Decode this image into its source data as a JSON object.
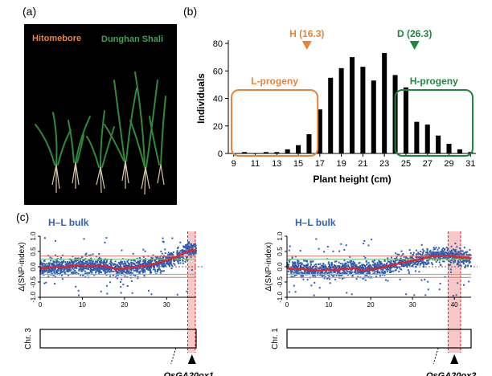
{
  "panel_labels": {
    "a": "(a)",
    "b": "(b)",
    "c": "(c)"
  },
  "photo": {
    "left_label": "Hitomebore",
    "right_label": "Dunghan Shali",
    "left_color": "#e8843a",
    "right_color": "#3fa34d"
  },
  "chart_data": [
    {
      "type": "bar",
      "categories": [
        9,
        10,
        11,
        12,
        13,
        14,
        15,
        16,
        17,
        18,
        19,
        20,
        21,
        22,
        23,
        24,
        25,
        26,
        27,
        28,
        29,
        30,
        31
      ],
      "values": [
        0,
        1,
        0,
        1,
        1,
        3,
        6,
        14,
        32,
        55,
        62,
        70,
        63,
        53,
        73,
        57,
        48,
        23,
        21,
        13,
        7,
        3,
        1
      ],
      "xlabel": "Plant height (cm)",
      "ylabel": "Individuals",
      "ylim": [
        0,
        80
      ],
      "xlim": [
        9,
        32
      ],
      "xticks": [
        "9",
        "11",
        "13",
        "15",
        "17",
        "19",
        "21",
        "23",
        "25",
        "27",
        "29",
        "31"
      ],
      "yticks": [
        "0",
        "20",
        "40",
        "60",
        "80"
      ],
      "annotations": [
        {
          "text": "H (16.3)",
          "x": 16.3,
          "color": "#e8843a"
        },
        {
          "text": "D (26.3)",
          "x": 26.3,
          "color": "#1a8a3a"
        },
        {
          "text": "L-progeny",
          "color": "#e8843a",
          "x_range": [
            9.3,
            17.3
          ]
        },
        {
          "text": "H-progeny",
          "color": "#1a8a3a",
          "x_range": [
            24.5,
            31.7
          ]
        }
      ]
    },
    {
      "type": "scatter",
      "title": "H–L bulk",
      "ylabel": "Δ(SNP-index)",
      "ylim": [
        -1.0,
        1.0
      ],
      "yticks": [
        "1.0",
        "0.5",
        "0.0",
        "-0.5",
        "-1.0"
      ],
      "xlim": [
        0,
        37
      ],
      "xticks": [
        "0",
        "10",
        "20",
        "30"
      ],
      "highlight_region": [
        35.0,
        36.8
      ],
      "chromosome_label": "Chr. 3",
      "gene_label": "OsGA20ox1",
      "gene_position": 36.0,
      "trend": [
        [
          0,
          -0.05
        ],
        [
          3,
          -0.02
        ],
        [
          6,
          0.0
        ],
        [
          9,
          0.05
        ],
        [
          12,
          0.02
        ],
        [
          14,
          0.04
        ],
        [
          16,
          0.0
        ],
        [
          18,
          -0.08
        ],
        [
          20,
          -0.05
        ],
        [
          22,
          0.0
        ],
        [
          24,
          0.02
        ],
        [
          26,
          0.05
        ],
        [
          28,
          0.12
        ],
        [
          30,
          0.22
        ],
        [
          32,
          0.3
        ],
        [
          34,
          0.45
        ],
        [
          35,
          0.5
        ],
        [
          36,
          0.55
        ],
        [
          37,
          0.52
        ]
      ],
      "upper_thresholds": [
        0.35,
        0.25
      ],
      "lower_thresholds": [
        -0.35,
        -0.25
      ]
    },
    {
      "type": "scatter",
      "title": "H–L bulk",
      "ylabel": "Δ(SNP-index)",
      "ylim": [
        -1.0,
        1.0
      ],
      "yticks": [
        "1.0",
        "0.5",
        "0.0",
        "-0.5",
        "-1.0"
      ],
      "xlim": [
        0,
        44
      ],
      "xticks": [
        "0",
        "10",
        "20",
        "30",
        "40"
      ],
      "highlight_region": [
        38.5,
        41.5
      ],
      "chromosome_label": "Chr. 1",
      "gene_label": "OsGA20ox2",
      "gene_position": 40.0,
      "trend": [
        [
          0,
          -0.05
        ],
        [
          4,
          -0.08
        ],
        [
          8,
          -0.12
        ],
        [
          12,
          -0.1
        ],
        [
          16,
          -0.05
        ],
        [
          18,
          -0.12
        ],
        [
          20,
          -0.08
        ],
        [
          22,
          -0.05
        ],
        [
          24,
          0.02
        ],
        [
          26,
          0.08
        ],
        [
          28,
          0.15
        ],
        [
          30,
          0.2
        ],
        [
          32,
          0.25
        ],
        [
          34,
          0.32
        ],
        [
          36,
          0.35
        ],
        [
          38,
          0.38
        ],
        [
          40,
          0.35
        ],
        [
          42,
          0.3
        ],
        [
          44,
          0.28
        ]
      ],
      "upper_thresholds": [
        0.35,
        0.25
      ],
      "lower_thresholds": [
        -0.35,
        -0.25
      ]
    }
  ]
}
